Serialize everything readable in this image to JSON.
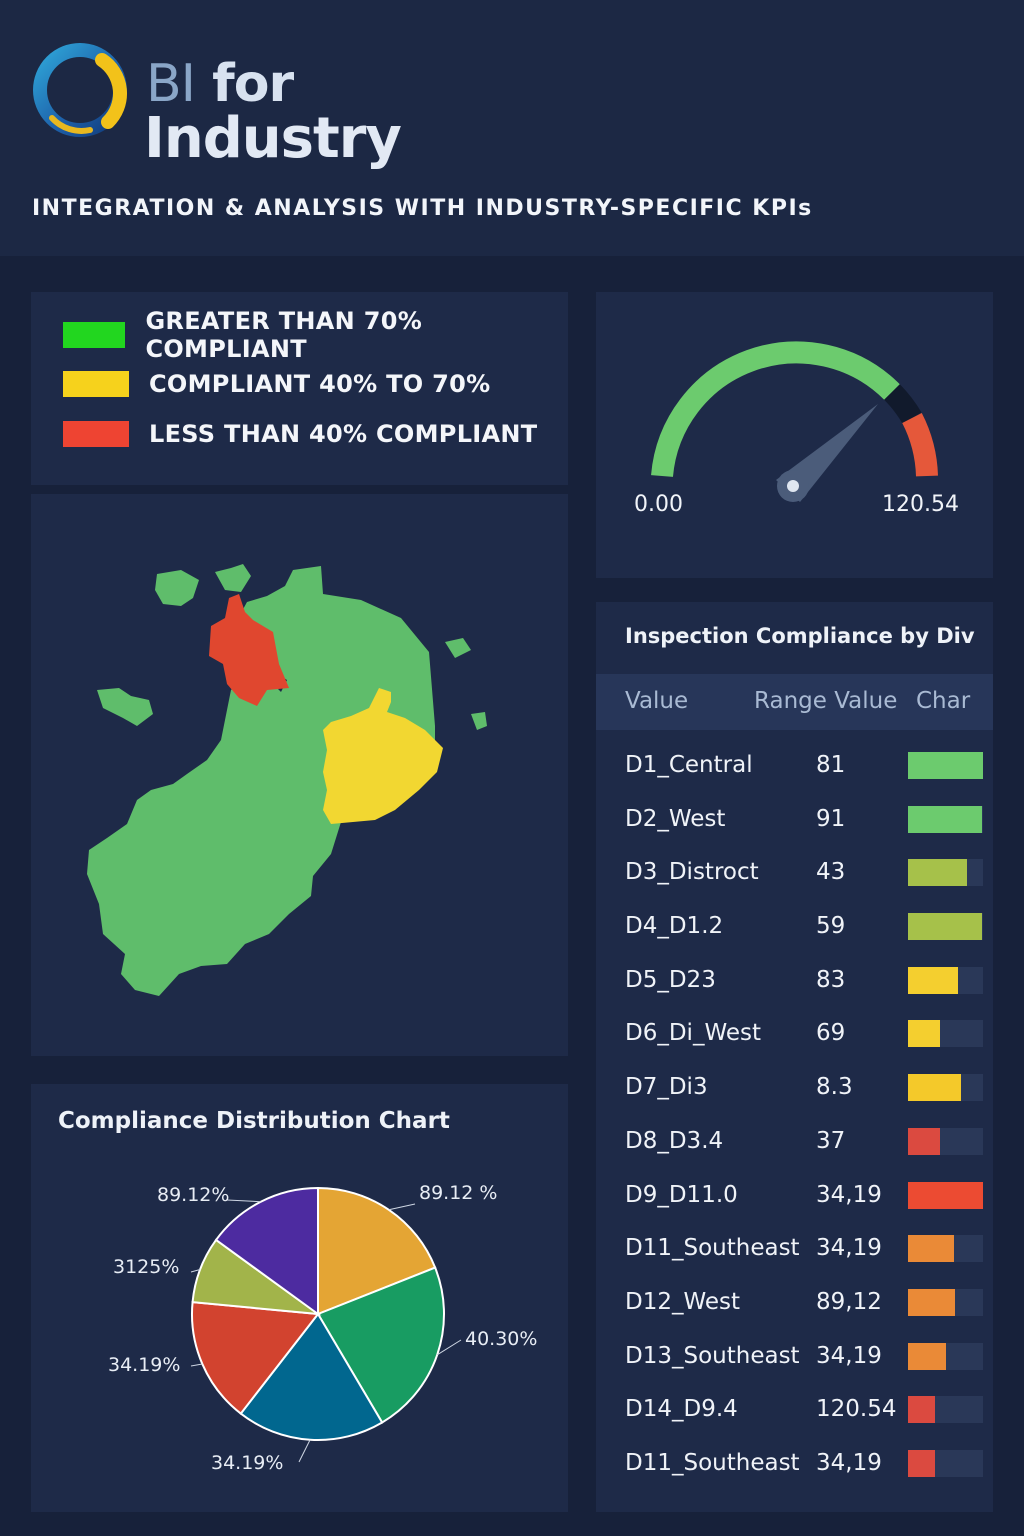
{
  "header": {
    "brand_bi": "BI",
    "brand_for": "for",
    "brand_industry": "Industry",
    "subtitle": "INTEGRATION & ANALYSIS WITH INDUSTRY-SPECIFIC KPIs"
  },
  "legend": {
    "items": [
      {
        "label": "GREATER THAN 70% COMPLIANT",
        "color": "#22d61f"
      },
      {
        "label": "COMPLIANT 40% TO 70%",
        "color": "#f6d21c"
      },
      {
        "label": "LESS THAN 40% COMPLIANT",
        "color": "#ee4432"
      }
    ]
  },
  "gauge": {
    "min_label": "0.00",
    "max_label": "120.54",
    "value_fraction": 0.78,
    "colors": {
      "good": "#6ccb6e",
      "bad": "#e5583a"
    }
  },
  "table": {
    "title": "Inspection Compliance by Div",
    "col_value": "Value",
    "col_range": "Range Value",
    "col_chart": "Char",
    "rows": [
      {
        "name": "D1_Central",
        "value": "81",
        "fill": 1.0,
        "color": "#6ccb6e"
      },
      {
        "name": "D2_West",
        "value": "91",
        "fill": 0.98,
        "color": "#6ccb6e"
      },
      {
        "name": "D3_Distroct",
        "value": "43",
        "fill": 0.78,
        "color": "#a6c14a"
      },
      {
        "name": "D4_D1.2",
        "value": "59",
        "fill": 0.98,
        "color": "#a6c14a"
      },
      {
        "name": "D5_D23",
        "value": "83",
        "fill": 0.67,
        "color": "#f4cf2f"
      },
      {
        "name": "D6_Di_West",
        "value": "69",
        "fill": 0.43,
        "color": "#f4cf2f"
      },
      {
        "name": "D7_Di3",
        "value": "8.3",
        "fill": 0.71,
        "color": "#f4c92a"
      },
      {
        "name": "D8_D3.4",
        "value": "37",
        "fill": 0.43,
        "color": "#db4a40"
      },
      {
        "name": "D9_D11.0",
        "value": "34,19",
        "fill": 1.0,
        "color": "#ec4b32"
      },
      {
        "name": "D11_Southeast",
        "value": "34,19",
        "fill": 0.61,
        "color": "#ea8a37"
      },
      {
        "name": "D12_West",
        "value": "89,12",
        "fill": 0.63,
        "color": "#ea8a37"
      },
      {
        "name": "D13_Southeast",
        "value": "34,19",
        "fill": 0.51,
        "color": "#ea8a37"
      },
      {
        "name": "D14_D9.4",
        "value": "120.54",
        "fill": 0.36,
        "color": "#db4a40"
      },
      {
        "name": "D11_Southeast",
        "value": "34,19",
        "fill": 0.36,
        "color": "#db4a40"
      }
    ]
  },
  "pie": {
    "title": "Compliance Distribution Chart"
  },
  "chart_data": {
    "type": "pie",
    "title": "Compliance Distribution Chart",
    "slices": [
      {
        "label": "89.12 %",
        "share": 0.19,
        "color": "#e4a534"
      },
      {
        "label": "40.30%",
        "share": 0.225,
        "color": "#189c62"
      },
      {
        "label": "34.19%",
        "share": 0.19,
        "color": "#01678f"
      },
      {
        "label": "34.19%",
        "share": 0.16,
        "color": "#d2432f"
      },
      {
        "label": "3125%",
        "share": 0.085,
        "color": "#a2b44a"
      },
      {
        "label": "89.12%",
        "share": 0.15,
        "color": "#4d2ba0"
      }
    ]
  }
}
